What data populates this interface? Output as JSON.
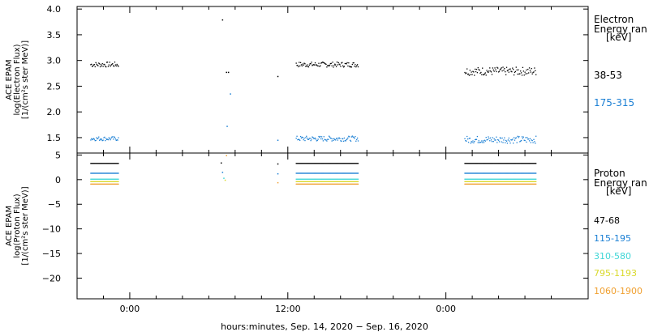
{
  "chart_data": [
    {
      "type": "scatter",
      "panel": "electron",
      "ylabel": [
        "ACE EPAM",
        "log(Electron Flux)",
        "[1/(cm²s ster MeV)]"
      ],
      "ylim": [
        1.2,
        4.05
      ],
      "yticks": [
        "4.0",
        "3.5",
        "3.0",
        "2.5",
        "2.0",
        "1.5"
      ],
      "ytick_values": [
        4.0,
        3.5,
        3.0,
        2.5,
        2.0,
        1.5
      ],
      "legend_title": [
        "Electron",
        "Energy ran",
        "[keV]"
      ],
      "series": [
        {
          "name": "38-53",
          "color": "#000000",
          "segments": [
            {
              "x": [
                -3.0,
                -0.9
              ],
              "y": 2.93,
              "jitter": 0.05
            },
            {
              "x": 7.0,
              "y": 3.8
            },
            {
              "x": 7.3,
              "y": 2.78
            },
            {
              "x": 7.45,
              "y": 2.78
            },
            {
              "x": 11.2,
              "y": 2.7
            },
            {
              "x": [
                12.6,
                17.3
              ],
              "y": 2.93,
              "jitter": 0.05
            },
            {
              "x": [
                25.4,
                30.8
              ],
              "y": 2.8,
              "jitter": 0.08
            }
          ]
        },
        {
          "name": "175-315",
          "color": "#1a7fd4",
          "segments": [
            {
              "x": [
                -3.0,
                -0.9
              ],
              "y": 1.49,
              "jitter": 0.04
            },
            {
              "x": 7.35,
              "y": 1.73
            },
            {
              "x": 7.6,
              "y": 2.36
            },
            {
              "x": 11.2,
              "y": 1.46
            },
            {
              "x": [
                12.6,
                17.3
              ],
              "y": 1.49,
              "jitter": 0.05
            },
            {
              "x": [
                25.4,
                30.8
              ],
              "y": 1.47,
              "jitter": 0.07
            }
          ]
        }
      ]
    },
    {
      "type": "scatter",
      "panel": "proton",
      "ylabel": [
        "ACE EPAM",
        "log(Proton Flux)",
        "[1/(cm²s ster MeV)]"
      ],
      "ylim": [
        -24.2,
        5.4
      ],
      "yticks": [
        "5",
        "0",
        "−5",
        "−10",
        "−15",
        "−20"
      ],
      "ytick_values": [
        5,
        0,
        -5,
        -10,
        -15,
        -20
      ],
      "legend_title": [
        "Proton",
        "Energy ran",
        "[keV]"
      ],
      "series": [
        {
          "name": "47-68",
          "color": "#000000",
          "segments": [
            {
              "x": [
                -3.0,
                -0.9
              ],
              "y": 3.4
            },
            {
              "x": 6.9,
              "y": 3.5
            },
            {
              "x": 11.2,
              "y": 3.3
            },
            {
              "x": [
                12.6,
                17.3
              ],
              "y": 3.4
            },
            {
              "x": [
                25.4,
                30.8
              ],
              "y": 3.4
            }
          ]
        },
        {
          "name": "115-195",
          "color": "#1a7fd4",
          "segments": [
            {
              "x": [
                -3.0,
                -0.9
              ],
              "y": 1.4
            },
            {
              "x": 7.0,
              "y": 1.6
            },
            {
              "x": 11.2,
              "y": 1.3
            },
            {
              "x": [
                12.6,
                17.3
              ],
              "y": 1.4
            },
            {
              "x": [
                25.4,
                30.8
              ],
              "y": 1.4
            }
          ]
        },
        {
          "name": "310-580",
          "color": "#3fd6d6",
          "segments": [
            {
              "x": [
                -3.0,
                -0.9
              ],
              "y": 0.2
            },
            {
              "x": 7.1,
              "y": 0.4
            },
            {
              "x": [
                12.6,
                17.3
              ],
              "y": 0.2
            },
            {
              "x": [
                25.4,
                30.8
              ],
              "y": 0.2
            }
          ]
        },
        {
          "name": "795-1193",
          "color": "#d9d92a",
          "segments": [
            {
              "x": [
                -3.0,
                -0.9
              ],
              "y": -0.3
            },
            {
              "x": 7.2,
              "y": 0.0
            },
            {
              "x": [
                12.6,
                17.3
              ],
              "y": -0.3
            },
            {
              "x": [
                25.4,
                30.8
              ],
              "y": -0.3
            }
          ]
        },
        {
          "name": "1060-1900",
          "color": "#f0a030",
          "segments": [
            {
              "x": [
                -3.0,
                -0.9
              ],
              "y": -0.8
            },
            {
              "x": 7.3,
              "y": 5.0
            },
            {
              "x": 11.2,
              "y": -0.5
            },
            {
              "x": [
                12.6,
                17.3
              ],
              "y": -0.8
            },
            {
              "x": [
                25.4,
                30.8
              ],
              "y": -0.8
            }
          ]
        }
      ]
    }
  ],
  "x_axis": {
    "xlim": [
      -4.0,
      34.8
    ],
    "major_ticks": [
      {
        "x": 0,
        "label": "0:00"
      },
      {
        "x": 12,
        "label": "12:00"
      },
      {
        "x": 24,
        "label": "0:00"
      }
    ],
    "minor_ticks": [
      -2,
      2,
      4,
      6,
      8,
      10,
      14,
      16,
      18,
      20,
      22,
      26,
      28,
      30,
      32
    ],
    "xlabel": "hours:minutes, Sep. 14, 2020 − Sep. 16, 2020"
  }
}
